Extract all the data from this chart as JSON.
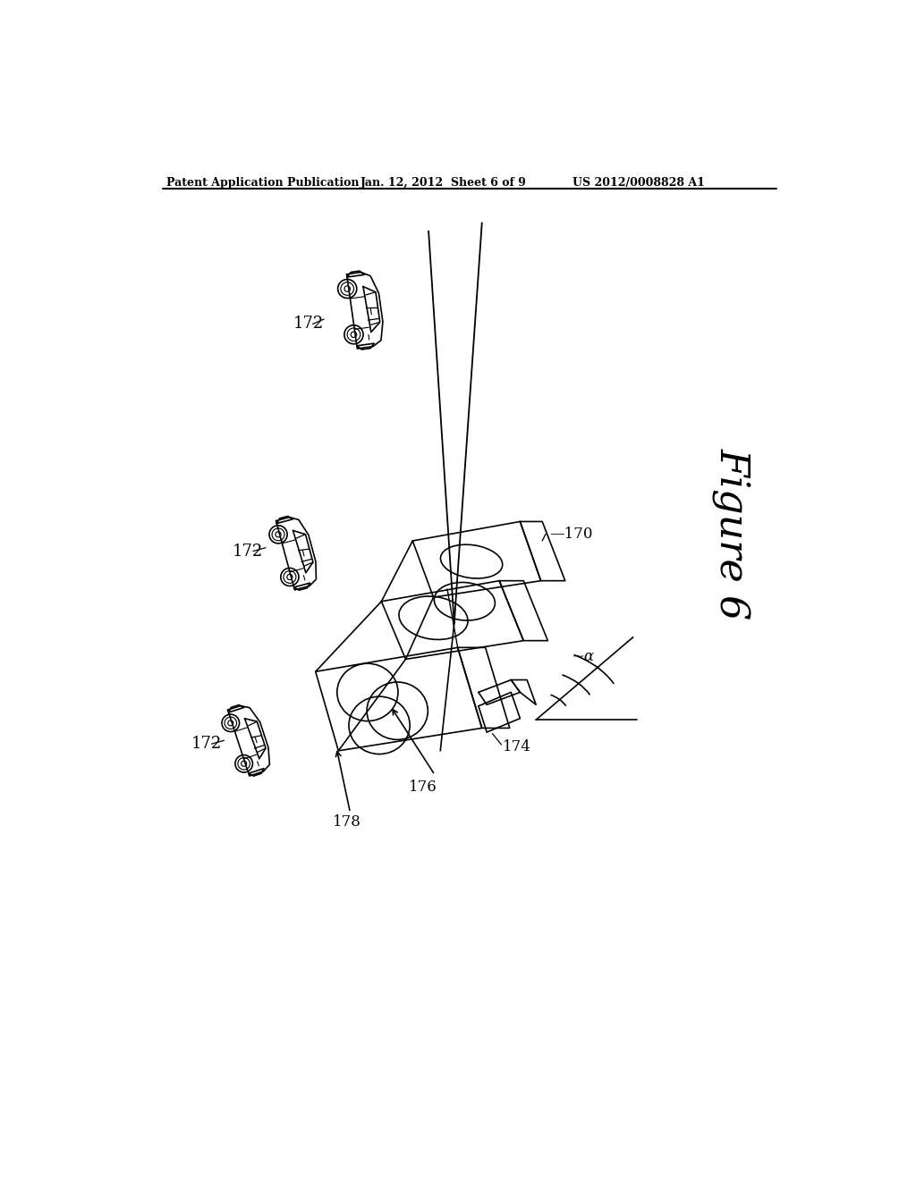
{
  "bg_color": "#ffffff",
  "line_color": "#000000",
  "header_left": "Patent Application Publication",
  "header_center": "Jan. 12, 2012  Sheet 6 of 9",
  "header_right": "US 2012/0008828 A1",
  "figure_label": "Figure 6",
  "labels": {
    "172_top": "172",
    "172_mid": "172",
    "172_bot": "172",
    "170": "170",
    "174": "174",
    "176": "176",
    "178": "178",
    "alpha": "~α"
  }
}
